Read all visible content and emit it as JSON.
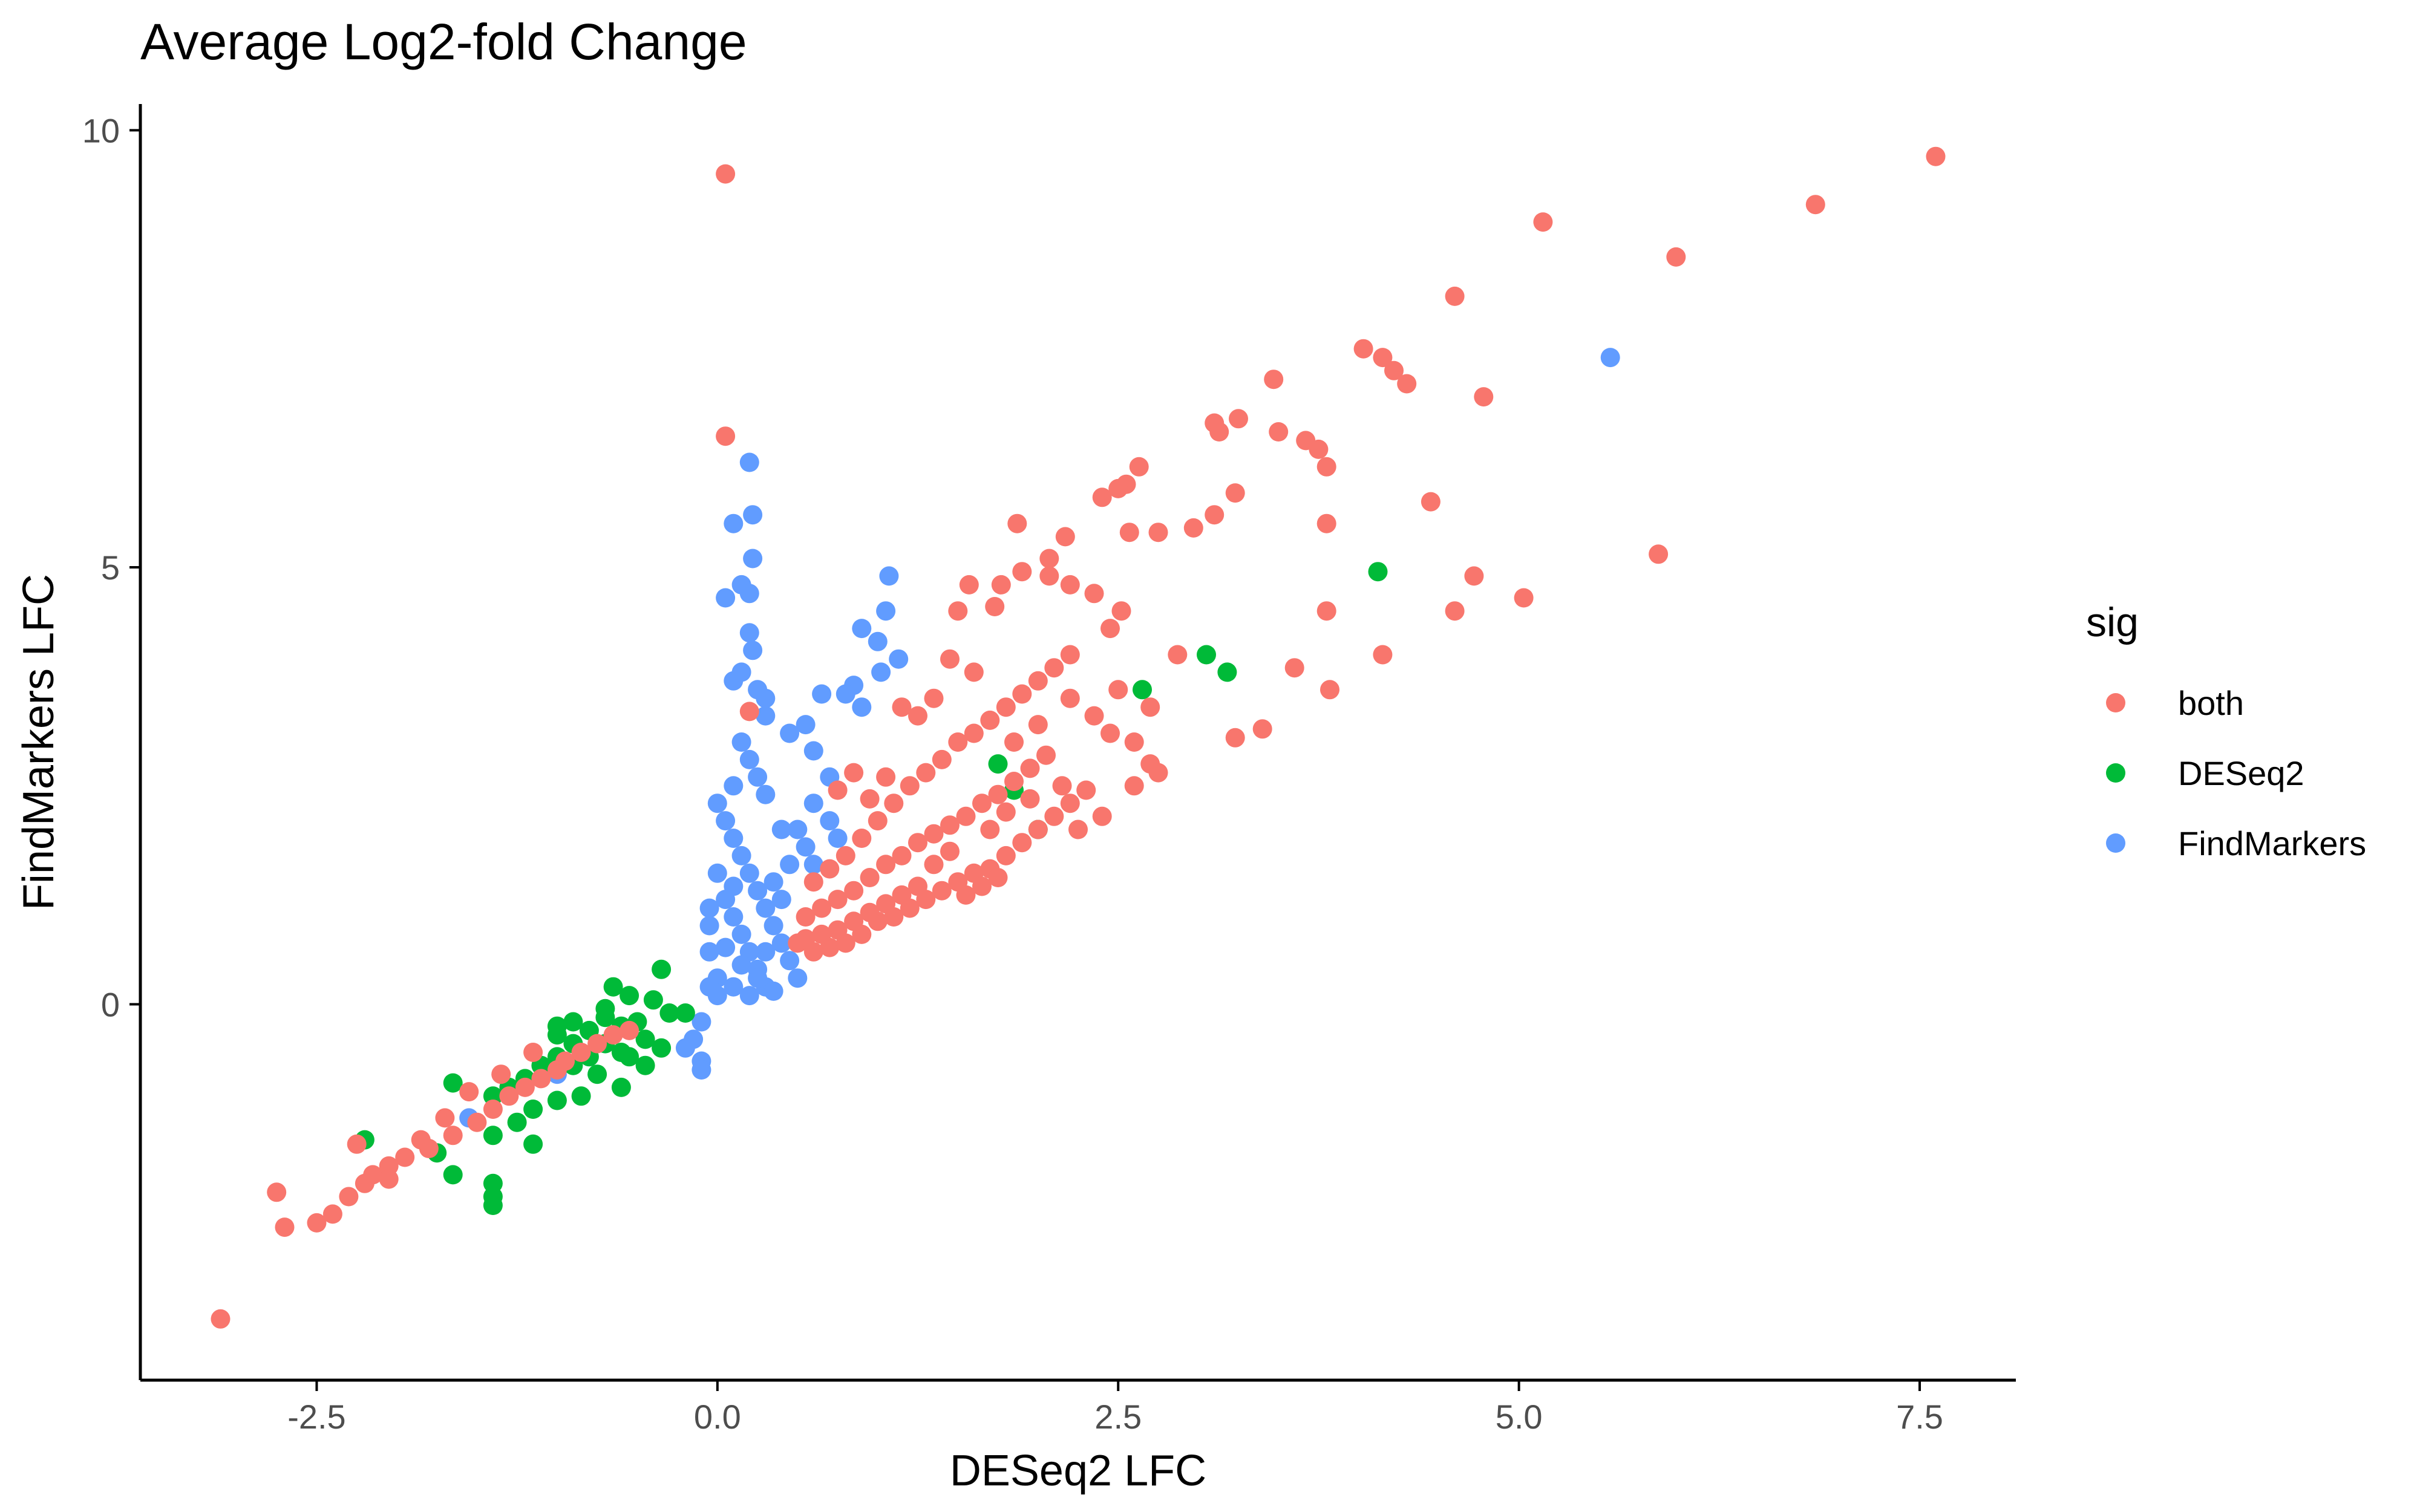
{
  "chart_data": {
    "type": "scatter",
    "title": "Average Log2-fold Change",
    "xlabel": "DESeq2 LFC",
    "ylabel": "FindMarkers LFC",
    "xlim": [
      -3.6,
      8.1
    ],
    "ylim": [
      -4.3,
      10.3
    ],
    "x_ticks": [
      -2.5,
      0.0,
      2.5,
      5.0,
      7.5
    ],
    "x_tick_labels": [
      "-2.5",
      "0.0",
      "2.5",
      "5.0",
      "7.5"
    ],
    "y_ticks": [
      0,
      5,
      10
    ],
    "y_tick_labels": [
      "0",
      "5",
      "10"
    ],
    "grid": false,
    "legend": {
      "title": "sig",
      "position": "right"
    },
    "series": [
      {
        "name": "both",
        "color": "#F8766D",
        "points": [
          [
            7.6,
            9.7
          ],
          [
            6.85,
            9.15
          ],
          [
            5.15,
            8.95
          ],
          [
            5.98,
            8.55
          ],
          [
            4.6,
            8.1
          ],
          [
            4.03,
            7.5
          ],
          [
            4.15,
            7.4
          ],
          [
            4.22,
            7.25
          ],
          [
            4.3,
            7.1
          ],
          [
            4.78,
            6.95
          ],
          [
            3.47,
            7.15
          ],
          [
            3.1,
            6.65
          ],
          [
            3.25,
            6.7
          ],
          [
            3.13,
            6.55
          ],
          [
            3.5,
            6.55
          ],
          [
            3.67,
            6.45
          ],
          [
            3.75,
            6.35
          ],
          [
            3.8,
            6.15
          ],
          [
            2.63,
            6.15
          ],
          [
            2.55,
            5.95
          ],
          [
            2.5,
            5.9
          ],
          [
            2.4,
            5.8
          ],
          [
            3.23,
            5.85
          ],
          [
            3.1,
            5.6
          ],
          [
            2.97,
            5.45
          ],
          [
            2.75,
            5.4
          ],
          [
            2.57,
            5.4
          ],
          [
            3.8,
            5.5
          ],
          [
            4.45,
            5.75
          ],
          [
            5.87,
            5.15
          ],
          [
            5.03,
            4.65
          ],
          [
            4.6,
            4.5
          ],
          [
            4.72,
            4.9
          ],
          [
            3.8,
            4.5
          ],
          [
            3.6,
            3.85
          ],
          [
            3.82,
            3.6
          ],
          [
            4.15,
            4.0
          ],
          [
            3.4,
            3.15
          ],
          [
            3.23,
            3.05
          ],
          [
            2.87,
            4.0
          ],
          [
            1.87,
            5.5
          ],
          [
            2.07,
            5.1
          ],
          [
            2.17,
            5.35
          ],
          [
            1.5,
            4.5
          ],
          [
            1.57,
            4.8
          ],
          [
            1.77,
            4.8
          ],
          [
            1.73,
            4.55
          ],
          [
            1.9,
            4.95
          ],
          [
            2.07,
            4.9
          ],
          [
            2.2,
            4.8
          ],
          [
            2.35,
            4.7
          ],
          [
            2.45,
            4.3
          ],
          [
            2.52,
            4.5
          ],
          [
            0.05,
            9.5
          ],
          [
            0.05,
            6.5
          ],
          [
            0.2,
            3.35
          ],
          [
            -3.1,
            -3.6
          ],
          [
            -2.7,
            -2.55
          ],
          [
            -2.75,
            -2.15
          ],
          [
            -2.5,
            -2.5
          ],
          [
            -2.4,
            -2.4
          ],
          [
            -2.3,
            -2.2
          ],
          [
            -2.2,
            -2.05
          ],
          [
            -2.15,
            -1.95
          ],
          [
            -2.05,
            -1.85
          ],
          [
            -1.95,
            -1.75
          ],
          [
            -1.8,
            -1.65
          ],
          [
            -1.65,
            -1.5
          ],
          [
            -1.5,
            -1.35
          ],
          [
            -1.4,
            -1.2
          ],
          [
            -1.3,
            -1.05
          ],
          [
            -1.2,
            -0.95
          ],
          [
            -1.1,
            -0.85
          ],
          [
            -1.0,
            -0.75
          ],
          [
            -0.95,
            -0.65
          ],
          [
            -0.85,
            -0.55
          ],
          [
            -0.75,
            -0.45
          ],
          [
            -0.65,
            -0.35
          ],
          [
            -0.55,
            -0.3
          ],
          [
            -1.55,
            -1.0
          ],
          [
            -1.7,
            -1.3
          ],
          [
            -1.85,
            -1.55
          ],
          [
            -2.05,
            -2.0
          ],
          [
            -2.25,
            -1.6
          ],
          [
            -1.35,
            -0.8
          ],
          [
            -1.15,
            -0.55
          ],
          [
            0.5,
            0.7
          ],
          [
            0.6,
            0.6
          ],
          [
            0.7,
            0.65
          ],
          [
            0.8,
            0.7
          ],
          [
            0.9,
            0.8
          ],
          [
            1.0,
            0.95
          ],
          [
            1.1,
            1.0
          ],
          [
            1.2,
            1.1
          ],
          [
            1.3,
            1.2
          ],
          [
            1.4,
            1.3
          ],
          [
            1.5,
            1.4
          ],
          [
            1.6,
            1.5
          ],
          [
            1.7,
            1.55
          ],
          [
            1.8,
            1.7
          ],
          [
            1.9,
            1.85
          ],
          [
            2.0,
            2.0
          ],
          [
            2.1,
            2.15
          ],
          [
            2.2,
            2.3
          ],
          [
            2.3,
            2.45
          ],
          [
            0.55,
            1.0
          ],
          [
            0.65,
            1.1
          ],
          [
            0.75,
            1.2
          ],
          [
            0.85,
            1.3
          ],
          [
            0.95,
            1.45
          ],
          [
            1.05,
            1.6
          ],
          [
            1.15,
            1.7
          ],
          [
            1.25,
            1.85
          ],
          [
            1.35,
            1.95
          ],
          [
            1.45,
            2.05
          ],
          [
            1.55,
            2.15
          ],
          [
            1.65,
            2.3
          ],
          [
            1.75,
            2.4
          ],
          [
            1.85,
            2.55
          ],
          [
            1.95,
            2.7
          ],
          [
            2.05,
            2.85
          ],
          [
            0.6,
            1.4
          ],
          [
            0.7,
            1.55
          ],
          [
            0.8,
            1.7
          ],
          [
            0.9,
            1.9
          ],
          [
            1.0,
            2.1
          ],
          [
            1.1,
            2.3
          ],
          [
            1.2,
            2.5
          ],
          [
            1.3,
            2.65
          ],
          [
            1.4,
            2.8
          ],
          [
            1.5,
            3.0
          ],
          [
            1.6,
            3.1
          ],
          [
            1.7,
            3.25
          ],
          [
            1.8,
            3.4
          ],
          [
            1.9,
            3.55
          ],
          [
            2.0,
            3.7
          ],
          [
            2.1,
            3.85
          ],
          [
            2.2,
            4.0
          ],
          [
            2.35,
            3.3
          ],
          [
            2.45,
            3.1
          ],
          [
            2.6,
            3.0
          ],
          [
            2.7,
            2.75
          ],
          [
            2.75,
            2.65
          ],
          [
            2.6,
            2.5
          ],
          [
            2.4,
            2.15
          ],
          [
            2.25,
            2.0
          ],
          [
            1.6,
            3.8
          ],
          [
            1.45,
            3.95
          ],
          [
            1.35,
            3.5
          ],
          [
            1.25,
            3.3
          ],
          [
            1.15,
            3.4
          ],
          [
            1.05,
            2.6
          ],
          [
            0.95,
            2.35
          ],
          [
            0.85,
            2.65
          ],
          [
            0.75,
            2.45
          ],
          [
            1.7,
            2.0
          ],
          [
            1.8,
            2.2
          ],
          [
            1.95,
            2.35
          ],
          [
            2.15,
            2.5
          ],
          [
            1.35,
            1.6
          ],
          [
            1.45,
            1.75
          ],
          [
            1.55,
            1.25
          ],
          [
            1.65,
            1.35
          ],
          [
            1.75,
            1.45
          ],
          [
            1.25,
            1.35
          ],
          [
            1.15,
            1.25
          ],
          [
            1.05,
            1.15
          ],
          [
            0.95,
            1.05
          ],
          [
            0.85,
            0.95
          ],
          [
            0.75,
            0.85
          ],
          [
            0.65,
            0.8
          ],
          [
            0.55,
            0.75
          ],
          [
            1.85,
            3.0
          ],
          [
            2.0,
            3.2
          ],
          [
            2.2,
            3.5
          ],
          [
            2.5,
            3.6
          ],
          [
            2.7,
            3.4
          ]
        ]
      },
      {
        "name": "DESeq2",
        "color": "#00BA38",
        "points": [
          [
            4.12,
            4.95
          ],
          [
            3.05,
            4.0
          ],
          [
            3.18,
            3.8
          ],
          [
            2.65,
            3.6
          ],
          [
            1.75,
            2.75
          ],
          [
            1.85,
            2.45
          ],
          [
            2.0,
            2.0
          ],
          [
            -0.65,
            0.2
          ],
          [
            -0.55,
            0.1
          ],
          [
            -0.4,
            0.05
          ],
          [
            -0.35,
            0.4
          ],
          [
            -0.9,
            -0.2
          ],
          [
            -0.8,
            -0.3
          ],
          [
            -0.7,
            -0.15
          ],
          [
            -0.6,
            -0.25
          ],
          [
            -0.5,
            -0.2
          ],
          [
            -0.45,
            -0.4
          ],
          [
            -0.6,
            -0.55
          ],
          [
            -0.7,
            -0.45
          ],
          [
            -0.8,
            -0.6
          ],
          [
            -0.9,
            -0.7
          ],
          [
            -1.0,
            -0.6
          ],
          [
            -1.1,
            -0.7
          ],
          [
            -1.2,
            -0.85
          ],
          [
            -1.3,
            -0.95
          ],
          [
            -1.4,
            -1.05
          ],
          [
            -1.0,
            -0.35
          ],
          [
            -0.9,
            -0.45
          ],
          [
            -0.75,
            -0.8
          ],
          [
            -0.6,
            -0.95
          ],
          [
            -0.85,
            -1.05
          ],
          [
            -1.0,
            -1.1
          ],
          [
            -1.15,
            -1.2
          ],
          [
            -1.25,
            -1.35
          ],
          [
            -1.4,
            -1.5
          ],
          [
            -1.65,
            -0.9
          ],
          [
            -1.75,
            -1.7
          ],
          [
            -1.65,
            -1.95
          ],
          [
            -1.4,
            -2.05
          ],
          [
            -1.4,
            -2.2
          ],
          [
            -1.4,
            -2.3
          ],
          [
            -2.2,
            -1.55
          ],
          [
            -1.15,
            -1.6
          ],
          [
            -1.0,
            -0.25
          ],
          [
            -0.7,
            -0.05
          ],
          [
            -0.3,
            -0.1
          ],
          [
            -0.2,
            -0.1
          ],
          [
            -0.55,
            -0.6
          ],
          [
            -0.45,
            -0.7
          ],
          [
            -0.35,
            -0.5
          ]
        ]
      },
      {
        "name": "FindMarkers",
        "color": "#619CFF",
        "points": [
          [
            5.57,
            7.4
          ],
          [
            0.2,
            6.2
          ],
          [
            0.22,
            5.6
          ],
          [
            0.1,
            5.5
          ],
          [
            0.22,
            5.1
          ],
          [
            0.15,
            4.8
          ],
          [
            0.2,
            4.7
          ],
          [
            0.05,
            4.65
          ],
          [
            0.2,
            4.25
          ],
          [
            0.22,
            4.05
          ],
          [
            1.07,
            4.9
          ],
          [
            1.05,
            4.5
          ],
          [
            0.9,
            4.3
          ],
          [
            1.0,
            4.15
          ],
          [
            1.13,
            3.95
          ],
          [
            1.02,
            3.8
          ],
          [
            0.85,
            3.65
          ],
          [
            0.8,
            3.55
          ],
          [
            0.65,
            3.55
          ],
          [
            0.55,
            3.2
          ],
          [
            0.45,
            3.1
          ],
          [
            0.3,
            3.5
          ],
          [
            0.1,
            3.7
          ],
          [
            0.15,
            3.8
          ],
          [
            0.25,
            3.6
          ],
          [
            0.3,
            3.3
          ],
          [
            0.15,
            3.0
          ],
          [
            0.2,
            2.8
          ],
          [
            0.25,
            2.6
          ],
          [
            0.3,
            2.4
          ],
          [
            0.1,
            2.5
          ],
          [
            0.0,
            2.3
          ],
          [
            0.05,
            2.1
          ],
          [
            0.1,
            1.9
          ],
          [
            0.15,
            1.7
          ],
          [
            0.2,
            1.5
          ],
          [
            0.25,
            1.3
          ],
          [
            0.3,
            1.1
          ],
          [
            0.35,
            0.9
          ],
          [
            0.4,
            0.7
          ],
          [
            0.45,
            0.5
          ],
          [
            0.5,
            0.3
          ],
          [
            0.0,
            1.5
          ],
          [
            0.05,
            1.2
          ],
          [
            0.1,
            1.0
          ],
          [
            0.15,
            0.8
          ],
          [
            0.2,
            0.6
          ],
          [
            0.25,
            0.4
          ],
          [
            0.3,
            0.2
          ],
          [
            0.35,
            0.15
          ],
          [
            -0.05,
            0.9
          ],
          [
            -0.05,
            0.6
          ],
          [
            0.0,
            0.3
          ],
          [
            -0.05,
            0.2
          ],
          [
            0.0,
            0.1
          ],
          [
            0.1,
            0.2
          ],
          [
            0.2,
            0.1
          ],
          [
            -0.1,
            -0.2
          ],
          [
            -0.15,
            -0.4
          ],
          [
            -0.2,
            -0.5
          ],
          [
            -0.1,
            -0.65
          ],
          [
            -0.1,
            -0.75
          ],
          [
            0.5,
            2.0
          ],
          [
            0.55,
            1.8
          ],
          [
            0.6,
            1.6
          ],
          [
            0.7,
            2.1
          ],
          [
            0.75,
            1.9
          ],
          [
            0.6,
            2.3
          ],
          [
            0.7,
            2.6
          ],
          [
            0.4,
            2.0
          ],
          [
            0.45,
            1.6
          ],
          [
            0.35,
            1.4
          ],
          [
            0.4,
            1.2
          ],
          [
            0.3,
            0.6
          ],
          [
            0.25,
            0.3
          ],
          [
            0.15,
            0.45
          ],
          [
            0.05,
            0.65
          ],
          [
            -0.05,
            1.1
          ],
          [
            0.1,
            1.35
          ],
          [
            -1.55,
            -1.3
          ],
          [
            -1.0,
            -0.8
          ],
          [
            0.9,
            3.4
          ],
          [
            0.6,
            2.9
          ]
        ]
      }
    ]
  }
}
